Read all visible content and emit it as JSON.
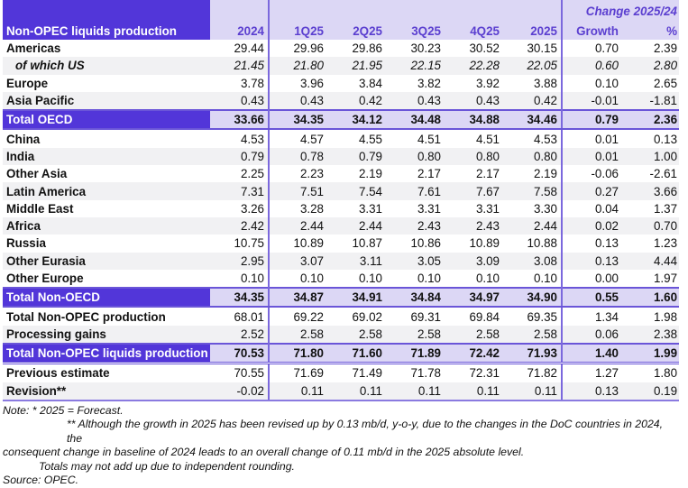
{
  "table": {
    "title": "Non-OPEC liquids production",
    "change_header": "Change 2025/24",
    "columns": [
      "2024",
      "1Q25",
      "2Q25",
      "3Q25",
      "4Q25",
      "2025",
      "Growth",
      "%"
    ],
    "rows": [
      {
        "label": "Americas",
        "values": [
          "29.44",
          "29.96",
          "29.86",
          "30.23",
          "30.52",
          "30.15",
          "0.70",
          "2.39"
        ]
      },
      {
        "label": "of which US",
        "values": [
          "21.45",
          "21.80",
          "21.95",
          "22.15",
          "22.28",
          "22.05",
          "0.60",
          "2.80"
        ]
      },
      {
        "label": "Europe",
        "values": [
          "3.78",
          "3.96",
          "3.84",
          "3.82",
          "3.92",
          "3.88",
          "0.10",
          "2.65"
        ]
      },
      {
        "label": "Asia Pacific",
        "values": [
          "0.43",
          "0.43",
          "0.42",
          "0.43",
          "0.43",
          "0.42",
          "-0.01",
          "-1.81"
        ]
      },
      {
        "label": "Total OECD",
        "values": [
          "33.66",
          "34.35",
          "34.12",
          "34.48",
          "34.88",
          "34.46",
          "0.79",
          "2.36"
        ]
      },
      {
        "label": "China",
        "values": [
          "4.53",
          "4.57",
          "4.55",
          "4.51",
          "4.51",
          "4.53",
          "0.01",
          "0.13"
        ]
      },
      {
        "label": "India",
        "values": [
          "0.79",
          "0.78",
          "0.79",
          "0.80",
          "0.80",
          "0.80",
          "0.01",
          "1.00"
        ]
      },
      {
        "label": "Other Asia",
        "values": [
          "2.25",
          "2.23",
          "2.19",
          "2.17",
          "2.17",
          "2.19",
          "-0.06",
          "-2.61"
        ]
      },
      {
        "label": "Latin America",
        "values": [
          "7.31",
          "7.51",
          "7.54",
          "7.61",
          "7.67",
          "7.58",
          "0.27",
          "3.66"
        ]
      },
      {
        "label": "Middle East",
        "values": [
          "3.26",
          "3.28",
          "3.31",
          "3.31",
          "3.31",
          "3.30",
          "0.04",
          "1.37"
        ]
      },
      {
        "label": "Africa",
        "values": [
          "2.42",
          "2.44",
          "2.44",
          "2.43",
          "2.43",
          "2.44",
          "0.02",
          "0.70"
        ]
      },
      {
        "label": "Russia",
        "values": [
          "10.75",
          "10.89",
          "10.87",
          "10.86",
          "10.89",
          "10.88",
          "0.13",
          "1.23"
        ]
      },
      {
        "label": "Other Eurasia",
        "values": [
          "2.95",
          "3.07",
          "3.11",
          "3.05",
          "3.09",
          "3.08",
          "0.13",
          "4.44"
        ]
      },
      {
        "label": "Other Europe",
        "values": [
          "0.10",
          "0.10",
          "0.10",
          "0.10",
          "0.10",
          "0.10",
          "0.00",
          "1.97"
        ]
      },
      {
        "label": "Total Non-OECD",
        "values": [
          "34.35",
          "34.87",
          "34.91",
          "34.84",
          "34.97",
          "34.90",
          "0.55",
          "1.60"
        ]
      },
      {
        "label": "Total Non-OPEC production",
        "values": [
          "68.01",
          "69.22",
          "69.02",
          "69.31",
          "69.84",
          "69.35",
          "1.34",
          "1.98"
        ]
      },
      {
        "label": "Processing gains",
        "values": [
          "2.52",
          "2.58",
          "2.58",
          "2.58",
          "2.58",
          "2.58",
          "0.06",
          "2.38"
        ]
      },
      {
        "label": "Total Non-OPEC liquids production",
        "values": [
          "70.53",
          "71.80",
          "71.60",
          "71.89",
          "72.42",
          "71.93",
          "1.40",
          "1.99"
        ]
      },
      {
        "label": "Previous estimate",
        "values": [
          "70.55",
          "71.69",
          "71.49",
          "71.78",
          "72.31",
          "71.82",
          "1.27",
          "1.80"
        ]
      },
      {
        "label": "Revision**",
        "values": [
          "-0.02",
          "0.11",
          "0.11",
          "0.11",
          "0.11",
          "0.11",
          "0.13",
          "0.19"
        ]
      }
    ]
  },
  "notes": {
    "line1": "Note: * 2025 = Forecast.",
    "line2": "** Although the growth in 2025 has been revised up by 0.13 mb/d, y-o-y, due to the changes in the DoC countries in 2024, the",
    "line3": "consequent change in baseline of 2024 leads to an overall change of 0.11 mb/d in the 2025 absolute level.",
    "line4": "Totals may not add up due to independent rounding.",
    "line5": "Source: OPEC."
  }
}
